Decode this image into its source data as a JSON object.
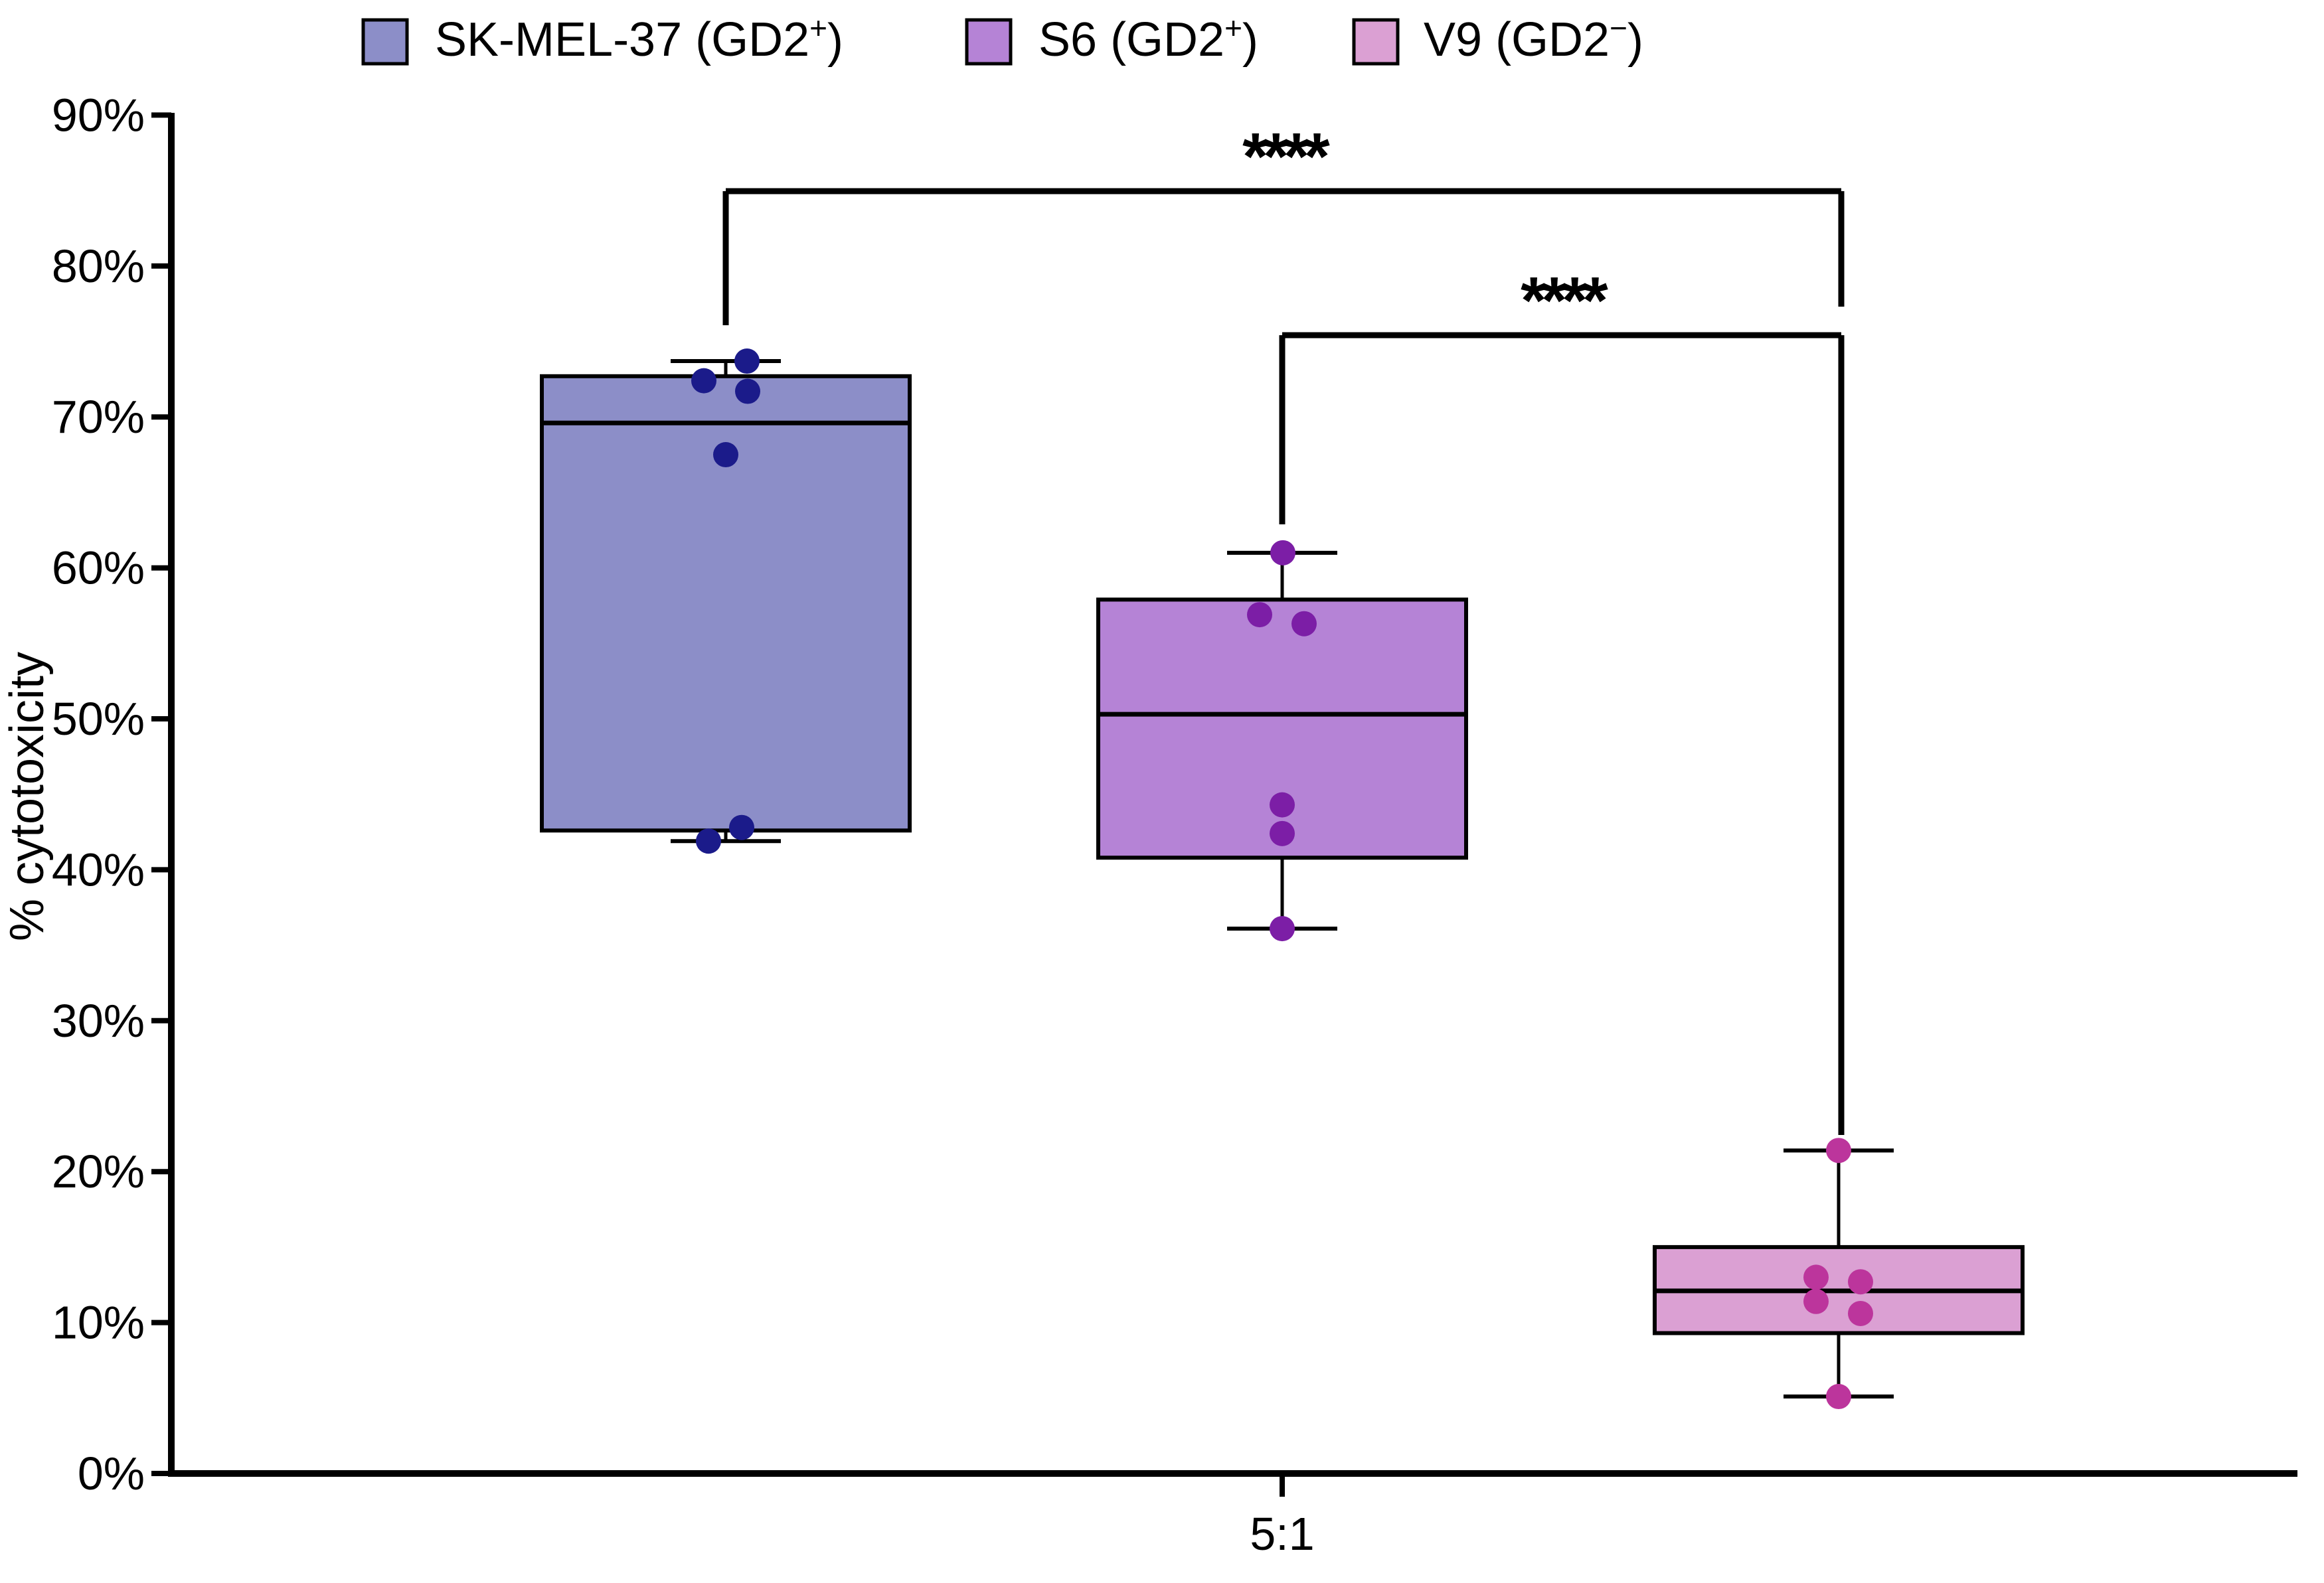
{
  "figure": {
    "kind": "grouped box plot with overlaid data points (cytotoxicity assay)",
    "background": "#ffffff",
    "axis_color": "#000000"
  },
  "chart_data": {
    "type": "box",
    "title": "",
    "xlabel": "",
    "ylabel": "% cytotoxicity",
    "x_categories": [
      "5:1"
    ],
    "ylim": [
      0,
      90
    ],
    "yticks": [
      0,
      10,
      20,
      30,
      40,
      50,
      60,
      70,
      80,
      90
    ],
    "ytick_suffix": "%",
    "grid": false,
    "legend_position": "top",
    "groups": [
      {
        "name": "SK-MEL-37 (GD2+)",
        "legend_pre": "SK-MEL-37 (GD2",
        "legend_sup": "+",
        "legend_post": ")",
        "fill": "#8c8ec8",
        "point_color": "#1b1b8a",
        "stats": {
          "min": 41.9,
          "q1": 42.6,
          "median": 69.6,
          "q3": 72.7,
          "max": 73.7
        },
        "points": [
          {
            "value": 73.7,
            "dx": 32
          },
          {
            "value": 72.4,
            "dx": -33
          },
          {
            "value": 71.7,
            "dx": 33
          },
          {
            "value": 67.5,
            "dx": 0
          },
          {
            "value": 42.8,
            "dx": 24
          },
          {
            "value": 41.9,
            "dx": -26
          }
        ]
      },
      {
        "name": "S6 (GD2+)",
        "legend_pre": "S6 (GD2",
        "legend_sup": "+",
        "legend_post": ")",
        "fill": "#b583d6",
        "point_color": "#7c1ea6",
        "stats": {
          "min": 36.1,
          "q1": 40.8,
          "median": 50.3,
          "q3": 57.9,
          "max": 61.0
        },
        "points": [
          {
            "value": 61.0,
            "dx": 1
          },
          {
            "value": 56.9,
            "dx": -34
          },
          {
            "value": 56.3,
            "dx": 33
          },
          {
            "value": 44.3,
            "dx": 0
          },
          {
            "value": 42.4,
            "dx": 0
          },
          {
            "value": 36.1,
            "dx": 0
          }
        ]
      },
      {
        "name": "V9 (GD2-)",
        "legend_pre": "V9 (GD2",
        "legend_sup": "−",
        "legend_post": ")",
        "fill": "#dba0d3",
        "point_color": "#bc359c",
        "stats": {
          "min": 5.1,
          "q1": 9.3,
          "median": 12.1,
          "q3": 15.0,
          "max": 21.4
        },
        "points": [
          {
            "value": 21.4,
            "dx": 0
          },
          {
            "value": 13.0,
            "dx": -34
          },
          {
            "value": 12.7,
            "dx": 33
          },
          {
            "value": 11.4,
            "dx": -34
          },
          {
            "value": 10.6,
            "dx": 33
          },
          {
            "value": 5.1,
            "dx": 0
          }
        ]
      }
    ],
    "significance": [
      {
        "label": "****",
        "from_group": 0,
        "to_group": 2
      },
      {
        "label": "****",
        "from_group": 1,
        "to_group": 2
      }
    ],
    "x_tick_label": "5:1"
  }
}
